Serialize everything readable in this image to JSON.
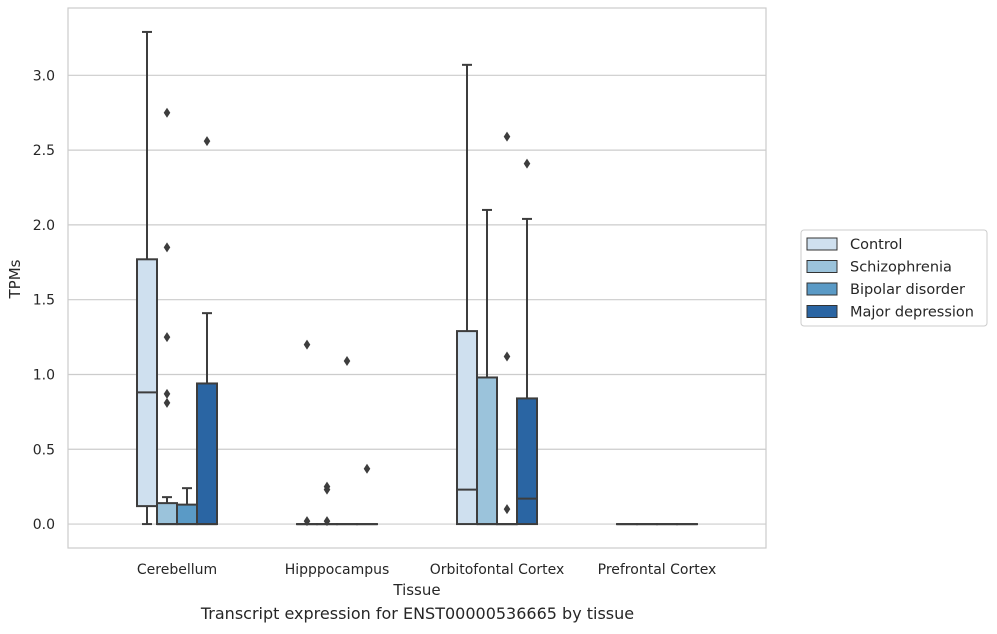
{
  "chart_data": {
    "type": "box",
    "xlabel": "Tissue",
    "ylabel": "TPMs",
    "ylim": [
      -0.16,
      3.45
    ],
    "yticks": [
      0.0,
      0.5,
      1.0,
      1.5,
      2.0,
      2.5,
      3.0
    ],
    "ytick_labels": [
      "0.0",
      "0.5",
      "1.0",
      "1.5",
      "2.0",
      "2.5",
      "3.0"
    ],
    "grid": "horizontal",
    "legend_position": "right",
    "categories": [
      "Cerebellum",
      "Hipppocampus",
      "Orbitofontal Cortex",
      "Prefrontal Cortex"
    ],
    "series": [
      {
        "name": "Control",
        "color": "#cfe0ef",
        "boxes": [
          {
            "whislo": 0.0,
            "q1": 0.12,
            "med": 0.88,
            "q3": 1.77,
            "whishi": 3.29,
            "fliers": []
          },
          {
            "whislo": 0.0,
            "q1": 0.0,
            "med": 0.0,
            "q3": 0.0,
            "whishi": 0.0,
            "fliers": [
              1.2,
              0.02
            ]
          },
          {
            "whislo": 0.0,
            "q1": 0.0,
            "med": 0.23,
            "q3": 1.29,
            "whishi": 3.07,
            "fliers": []
          },
          {
            "whislo": 0.0,
            "q1": 0.0,
            "med": 0.0,
            "q3": 0.0,
            "whishi": 0.0,
            "fliers": []
          }
        ]
      },
      {
        "name": "Schizophrenia",
        "color": "#9bc3db",
        "boxes": [
          {
            "whislo": 0.0,
            "q1": 0.0,
            "med": 0.0,
            "q3": 0.14,
            "whishi": 0.18,
            "fliers": [
              2.75,
              1.85,
              1.25,
              0.87,
              0.81
            ]
          },
          {
            "whislo": 0.0,
            "q1": 0.0,
            "med": 0.0,
            "q3": 0.0,
            "whishi": 0.0,
            "fliers": [
              0.25,
              0.23,
              0.02
            ]
          },
          {
            "whislo": 0.0,
            "q1": 0.0,
            "med": 0.0,
            "q3": 0.98,
            "whishi": 2.1,
            "fliers": []
          },
          {
            "whislo": 0.0,
            "q1": 0.0,
            "med": 0.0,
            "q3": 0.0,
            "whishi": 0.0,
            "fliers": []
          }
        ]
      },
      {
        "name": "Bipolar disorder",
        "color": "#5a9ac6",
        "boxes": [
          {
            "whislo": 0.0,
            "q1": 0.0,
            "med": 0.0,
            "q3": 0.13,
            "whishi": 0.24,
            "fliers": []
          },
          {
            "whislo": 0.0,
            "q1": 0.0,
            "med": 0.0,
            "q3": 0.0,
            "whishi": 0.0,
            "fliers": [
              1.09
            ]
          },
          {
            "whislo": 0.0,
            "q1": 0.0,
            "med": 0.0,
            "q3": 0.0,
            "whishi": 0.0,
            "fliers": [
              2.59,
              1.12,
              0.1
            ]
          },
          {
            "whislo": 0.0,
            "q1": 0.0,
            "med": 0.0,
            "q3": 0.0,
            "whishi": 0.0,
            "fliers": []
          }
        ]
      },
      {
        "name": "Major depression",
        "color": "#2a65a3",
        "boxes": [
          {
            "whislo": 0.0,
            "q1": 0.0,
            "med": 0.0,
            "q3": 0.94,
            "whishi": 1.41,
            "fliers": [
              2.56
            ]
          },
          {
            "whislo": 0.0,
            "q1": 0.0,
            "med": 0.0,
            "q3": 0.0,
            "whishi": 0.0,
            "fliers": [
              0.37
            ]
          },
          {
            "whislo": 0.0,
            "q1": 0.0,
            "med": 0.17,
            "q3": 0.84,
            "whishi": 2.04,
            "fliers": [
              2.41
            ]
          },
          {
            "whislo": 0.0,
            "q1": 0.0,
            "med": 0.0,
            "q3": 0.0,
            "whishi": 0.0,
            "fliers": []
          }
        ]
      }
    ]
  },
  "caption": "Transcript expression for ENST00000536665 by tissue",
  "colors": {
    "grid": "#cccccc",
    "line": "#3d3d3d",
    "frame": "#cccccc"
  }
}
